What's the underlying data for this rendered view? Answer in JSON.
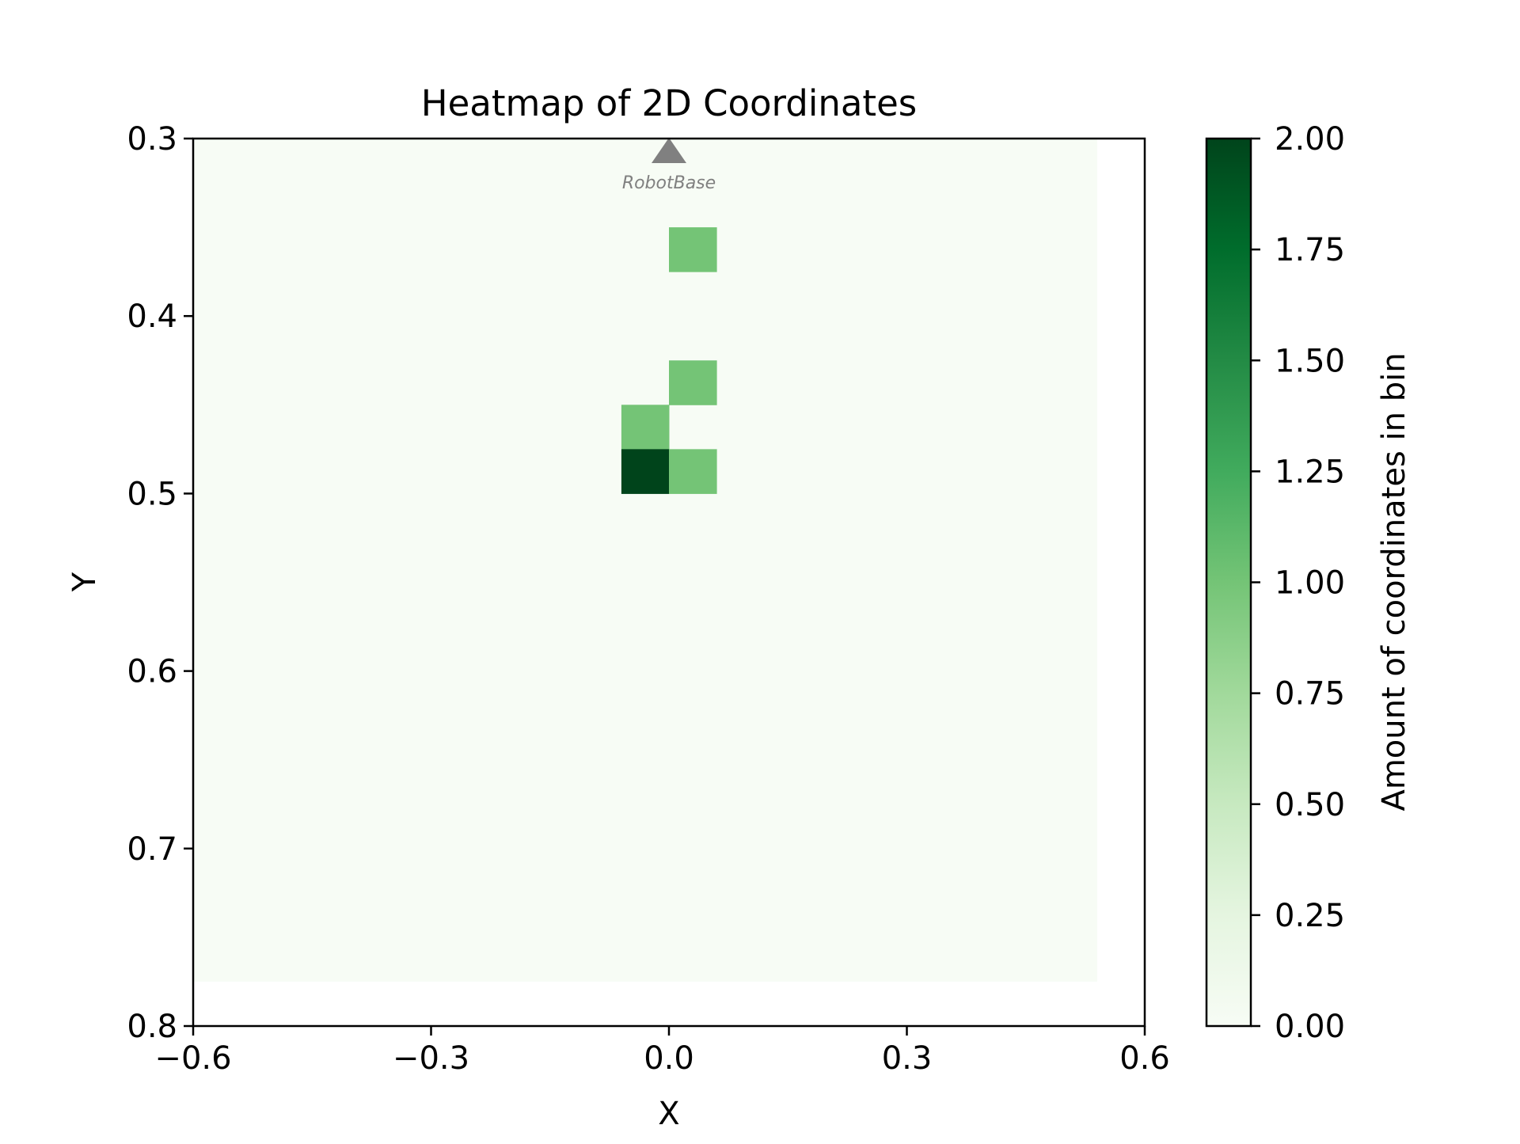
{
  "chart_data": {
    "type": "heatmap",
    "title": "Heatmap of 2D Coordinates",
    "xlabel": "X",
    "ylabel": "Y",
    "xlim": [
      -0.6,
      0.6
    ],
    "ylim": [
      0.3,
      0.8
    ],
    "y_inverted": true,
    "x_ticks": [
      -0.6,
      -0.3,
      0.0,
      0.3,
      0.6
    ],
    "x_tick_labels": [
      "−0.6",
      "−0.3",
      "0.0",
      "0.3",
      "0.6"
    ],
    "y_ticks": [
      0.3,
      0.4,
      0.5,
      0.6,
      0.7,
      0.8
    ],
    "y_tick_labels": [
      "0.3",
      "0.4",
      "0.5",
      "0.6",
      "0.7",
      "0.8"
    ],
    "grid": false,
    "bin_width": 0.06,
    "bin_height": 0.025,
    "bins_extent": {
      "x": [
        -0.6,
        0.54
      ],
      "y": [
        0.3,
        0.775
      ]
    },
    "cells": [
      {
        "x0": 0.0,
        "x1": 0.06,
        "y0": 0.35,
        "y1": 0.375,
        "count": 1
      },
      {
        "x0": 0.0,
        "x1": 0.06,
        "y0": 0.425,
        "y1": 0.45,
        "count": 1
      },
      {
        "x0": -0.06,
        "x1": 0.0,
        "y0": 0.45,
        "y1": 0.475,
        "count": 1
      },
      {
        "x0": -0.06,
        "x1": 0.0,
        "y0": 0.475,
        "y1": 0.5,
        "count": 2
      },
      {
        "x0": 0.0,
        "x1": 0.06,
        "y0": 0.475,
        "y1": 0.5,
        "count": 1
      }
    ],
    "marker": {
      "label": "RobotBase",
      "x": 0.0,
      "y": 0.3,
      "shape": "triangle-up",
      "color": "#808080"
    },
    "colorbar": {
      "label": "Amount of coordinates in bin",
      "min": 0.0,
      "max": 2.0,
      "ticks": [
        0.0,
        0.25,
        0.5,
        0.75,
        1.0,
        1.25,
        1.5,
        1.75,
        2.0
      ],
      "tick_labels": [
        "0.00",
        "0.25",
        "0.50",
        "0.75",
        "1.00",
        "1.25",
        "1.50",
        "1.75",
        "2.00"
      ],
      "colormap": "Greens",
      "stops": [
        "#f7fcf5",
        "#e5f5e0",
        "#c7e9c0",
        "#a1d99b",
        "#74c476",
        "#41ab5d",
        "#238b45",
        "#006d2c",
        "#00441b"
      ]
    }
  }
}
